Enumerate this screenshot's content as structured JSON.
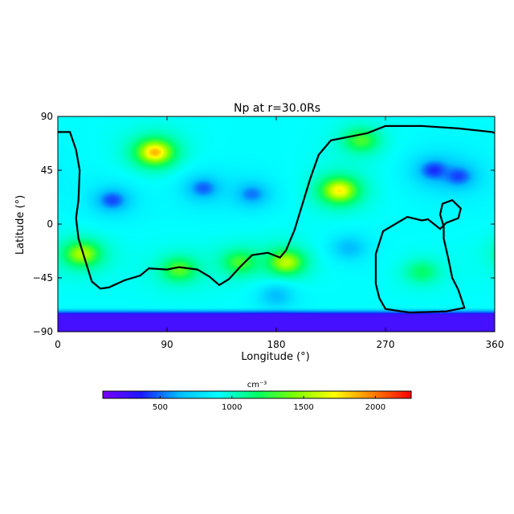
{
  "chart_data": {
    "type": "heatmap",
    "title": "Np at r=30.0Rs",
    "xlabel": "Longitude (°)",
    "ylabel": "Latitude (°)",
    "xlim": [
      0,
      360
    ],
    "ylim": [
      -90,
      90
    ],
    "x_ticks": [
      "0",
      "90",
      "180",
      "270",
      "360"
    ],
    "y_ticks": [
      "90",
      "45",
      "0",
      "−45",
      "−90"
    ],
    "colorbar": {
      "label": "cm⁻³",
      "range": [
        100,
        2250
      ],
      "ticks": [
        "500",
        "1000",
        "1500",
        "2000"
      ],
      "colormap": [
        "#7b00ff",
        "#1a1aff",
        "#00bfff",
        "#00ffff",
        "#00ff66",
        "#80ff00",
        "#ffff00",
        "#ff8000",
        "#ff0000"
      ]
    },
    "background_level": 900,
    "hotspots": [
      {
        "lon": 80,
        "lat": 60,
        "value": 2150
      },
      {
        "lon": 232,
        "lat": 28,
        "value": 2000
      },
      {
        "lon": 20,
        "lat": -25,
        "value": 1750
      },
      {
        "lon": 188,
        "lat": -32,
        "value": 1800
      },
      {
        "lon": 100,
        "lat": -38,
        "value": 1500
      },
      {
        "lon": 150,
        "lat": -32,
        "value": 1450
      },
      {
        "lon": 250,
        "lat": 70,
        "value": 1450
      },
      {
        "lon": 300,
        "lat": -40,
        "value": 1250
      }
    ],
    "lowspots": [
      {
        "lon": 45,
        "lat": 20,
        "value": 300
      },
      {
        "lon": 120,
        "lat": 30,
        "value": 350
      },
      {
        "lon": 160,
        "lat": 25,
        "value": 400
      },
      {
        "lon": 310,
        "lat": 45,
        "value": 250
      },
      {
        "lon": 330,
        "lat": 40,
        "value": 300
      },
      {
        "lon": 240,
        "lat": -20,
        "value": 550
      },
      {
        "lon": 180,
        "lat": -60,
        "value": 550
      }
    ],
    "south_band": {
      "lat_max": -70,
      "value": 250
    },
    "neutral_line": [
      [
        0,
        77
      ],
      [
        10,
        77
      ],
      [
        15,
        62
      ],
      [
        18,
        45
      ],
      [
        17,
        20
      ],
      [
        15,
        5
      ],
      [
        17,
        -12
      ],
      [
        24,
        -35
      ],
      [
        28,
        -48
      ],
      [
        35,
        -54
      ],
      [
        42,
        -53
      ],
      [
        55,
        -47
      ],
      [
        68,
        -43
      ],
      [
        75,
        -37
      ],
      [
        90,
        -38
      ],
      [
        100,
        -36
      ],
      [
        115,
        -38
      ],
      [
        125,
        -44
      ],
      [
        133,
        -51
      ],
      [
        141,
        -46
      ],
      [
        150,
        -36
      ],
      [
        160,
        -26
      ],
      [
        173,
        -24
      ],
      [
        183,
        -28
      ],
      [
        188,
        -22
      ],
      [
        195,
        -5
      ],
      [
        202,
        18
      ],
      [
        208,
        38
      ],
      [
        215,
        58
      ],
      [
        225,
        70
      ],
      [
        255,
        76
      ],
      [
        270,
        82
      ],
      [
        300,
        82
      ],
      [
        330,
        80
      ],
      [
        358,
        77
      ],
      [
        360,
        76
      ]
    ],
    "neutral_line_loop": [
      [
        300,
        3
      ],
      [
        288,
        6
      ],
      [
        268,
        -6
      ],
      [
        262,
        -25
      ],
      [
        262,
        -50
      ],
      [
        265,
        -62
      ],
      [
        270,
        -71
      ],
      [
        290,
        -74
      ],
      [
        320,
        -73
      ],
      [
        335,
        -70
      ],
      [
        330,
        -55
      ],
      [
        325,
        -45
      ],
      [
        322,
        -30
      ],
      [
        318,
        -12
      ],
      [
        318,
        -2
      ],
      [
        315,
        8
      ],
      [
        317,
        17
      ],
      [
        325,
        20
      ],
      [
        332,
        13
      ],
      [
        330,
        5
      ],
      [
        320,
        1
      ],
      [
        315,
        -4
      ],
      [
        310,
        0
      ],
      [
        305,
        4
      ],
      [
        300,
        3
      ]
    ]
  }
}
